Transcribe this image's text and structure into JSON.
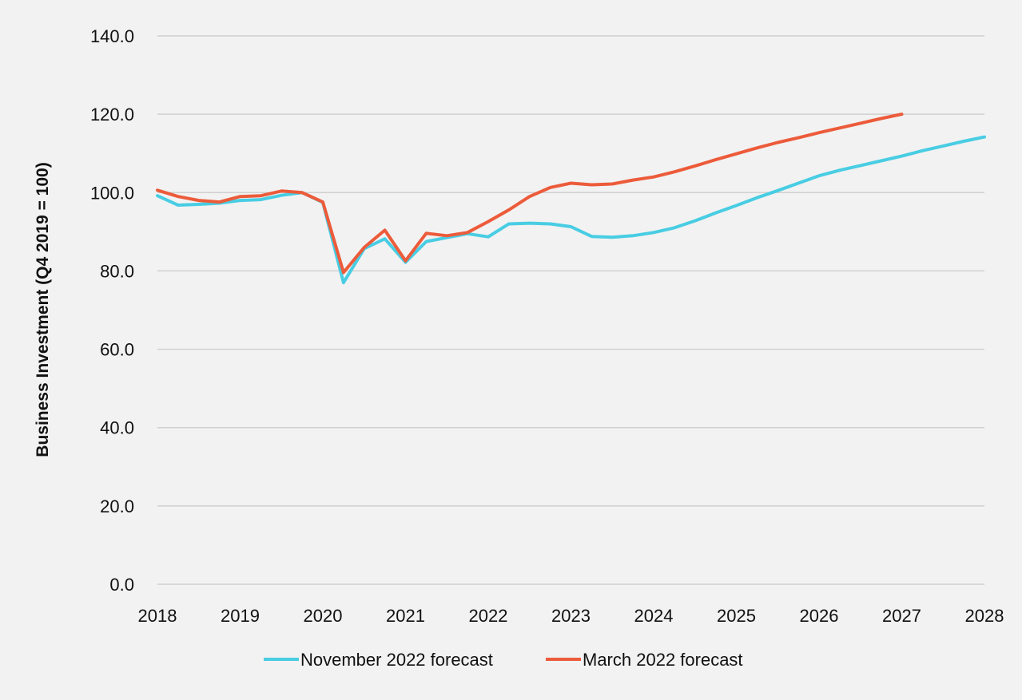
{
  "chart_data": {
    "type": "line",
    "ylabel": "Business Investment (Q4 2019 = 100)",
    "xlabel": "",
    "ylim": [
      0,
      140
    ],
    "y_ticks": [
      0,
      20,
      40,
      60,
      80,
      100,
      120,
      140
    ],
    "y_tick_labels": [
      "0.0",
      "20.0",
      "40.0",
      "60.0",
      "80.0",
      "100.0",
      "120.0",
      "140.0"
    ],
    "xlim": [
      2018,
      2028
    ],
    "x_ticks": [
      2018,
      2019,
      2020,
      2021,
      2022,
      2023,
      2024,
      2025,
      2026,
      2027,
      2028
    ],
    "x_tick_labels": [
      "2018",
      "2019",
      "2020",
      "2021",
      "2022",
      "2023",
      "2024",
      "2025",
      "2026",
      "2027",
      "2028"
    ],
    "grid": true,
    "legend_position": "bottom",
    "series": [
      {
        "name": "November 2022 forecast",
        "color": "#48cde3",
        "x": [
          2018,
          2018.25,
          2018.5,
          2018.75,
          2019,
          2019.25,
          2019.5,
          2019.75,
          2020,
          2020.25,
          2020.5,
          2020.75,
          2021,
          2021.25,
          2021.5,
          2021.75,
          2022,
          2022.25,
          2022.5,
          2022.75,
          2023,
          2023.25,
          2023.5,
          2023.75,
          2024,
          2024.25,
          2024.5,
          2024.75,
          2025,
          2025.25,
          2025.5,
          2025.75,
          2026,
          2026.25,
          2026.5,
          2026.75,
          2027,
          2027.25,
          2027.5,
          2027.75,
          2028
        ],
        "values": [
          99.2,
          96.8,
          97.0,
          97.3,
          98.0,
          98.2,
          99.3,
          100.0,
          97.5,
          77.0,
          85.7,
          88.2,
          82.2,
          87.5,
          88.5,
          89.5,
          88.7,
          92.0,
          92.2,
          92.0,
          91.3,
          88.8,
          88.6,
          89.0,
          89.8,
          91.0,
          92.8,
          94.8,
          96.7,
          98.7,
          100.5,
          102.4,
          104.3,
          105.7,
          106.9,
          108.1,
          109.3,
          110.7,
          111.9,
          113.1,
          114.2
        ]
      },
      {
        "name": "March 2022 forecast",
        "color": "#ec5b3a",
        "x": [
          2018,
          2018.25,
          2018.5,
          2018.75,
          2019,
          2019.25,
          2019.5,
          2019.75,
          2020,
          2020.25,
          2020.5,
          2020.75,
          2021,
          2021.25,
          2021.5,
          2021.75,
          2022,
          2022.25,
          2022.5,
          2022.75,
          2023,
          2023.25,
          2023.5,
          2023.75,
          2024,
          2024.25,
          2024.5,
          2024.75,
          2025,
          2025.25,
          2025.5,
          2025.75,
          2026,
          2026.25,
          2026.5,
          2026.75,
          2027
        ],
        "values": [
          100.6,
          99.0,
          98.0,
          97.6,
          99.0,
          99.2,
          100.4,
          100.0,
          97.6,
          79.6,
          86.0,
          90.4,
          82.6,
          89.6,
          89.0,
          89.8,
          92.6,
          95.6,
          99.0,
          101.3,
          102.4,
          102.0,
          102.2,
          103.2,
          104.0,
          105.3,
          106.8,
          108.4,
          109.9,
          111.4,
          112.8,
          114.0,
          115.3,
          116.5,
          117.7,
          118.9,
          120.0
        ]
      }
    ]
  }
}
